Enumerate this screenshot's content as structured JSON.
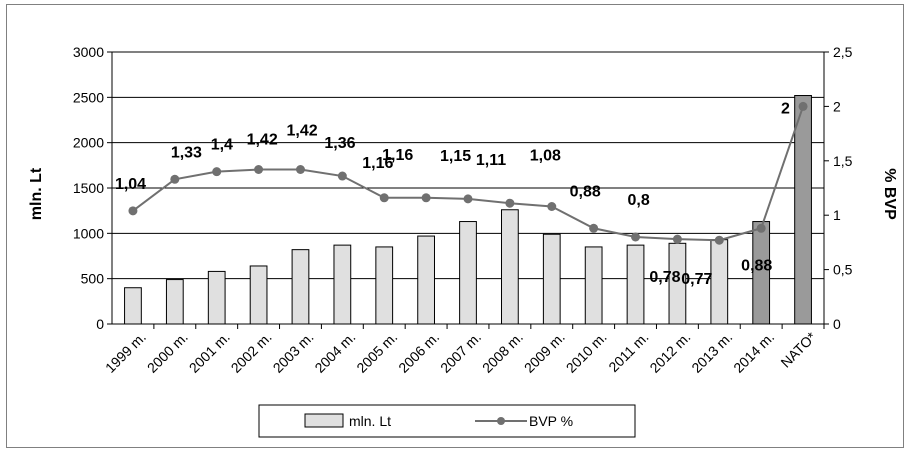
{
  "chart_data": {
    "type": "bar",
    "categories": [
      "1999 m.",
      "2000 m.",
      "2001 m.",
      "2002 m.",
      "2003 m.",
      "2004 m.",
      "2005 m.",
      "2006 m.",
      "2007 m.",
      "2008 m.",
      "2009 m.",
      "2010 m.",
      "2011 m.",
      "2012 m.",
      "2013 m.",
      "2014 m.",
      "NATO*"
    ],
    "series": [
      {
        "name": "mln. Lt",
        "type": "bar",
        "axis": "left",
        "values": [
          400,
          490,
          580,
          640,
          820,
          870,
          850,
          970,
          1130,
          1260,
          990,
          850,
          870,
          890,
          930,
          1130,
          2520
        ],
        "colors": [
          "#e0e0e0",
          "#e0e0e0",
          "#e0e0e0",
          "#e0e0e0",
          "#e0e0e0",
          "#e0e0e0",
          "#e0e0e0",
          "#e0e0e0",
          "#e0e0e0",
          "#e0e0e0",
          "#e0e0e0",
          "#e0e0e0",
          "#e0e0e0",
          "#e0e0e0",
          "#e0e0e0",
          "#9a9a9a",
          "#9a9a9a"
        ]
      },
      {
        "name": "BVP %",
        "type": "line",
        "axis": "right",
        "values": [
          1.04,
          1.33,
          1.4,
          1.42,
          1.42,
          1.36,
          1.16,
          1.16,
          1.15,
          1.11,
          1.08,
          0.88,
          0.8,
          0.78,
          0.77,
          0.88,
          2.0
        ],
        "labels": [
          "1,04",
          "1,33",
          "1,4",
          "1,42",
          "1,42",
          "1,36",
          "1,16",
          "1,16",
          "1,15",
          "1,11",
          "1,08",
          "0,88",
          "0,8",
          "0,78",
          "0,77",
          "0,88",
          "2"
        ],
        "color": "#707070"
      }
    ],
    "ylabel": "mln. Lt",
    "ylabel_right": "% BVP",
    "ylim": [
      0,
      3000
    ],
    "ylim_right": [
      0,
      2.5
    ],
    "yticks": [
      "0",
      "500",
      "1000",
      "1500",
      "2000",
      "2500",
      "3000"
    ],
    "yticks_right": [
      "0",
      "0,5",
      "1",
      "1,5",
      "2",
      "2,5"
    ],
    "grid": true,
    "legend_position": "bottom"
  }
}
